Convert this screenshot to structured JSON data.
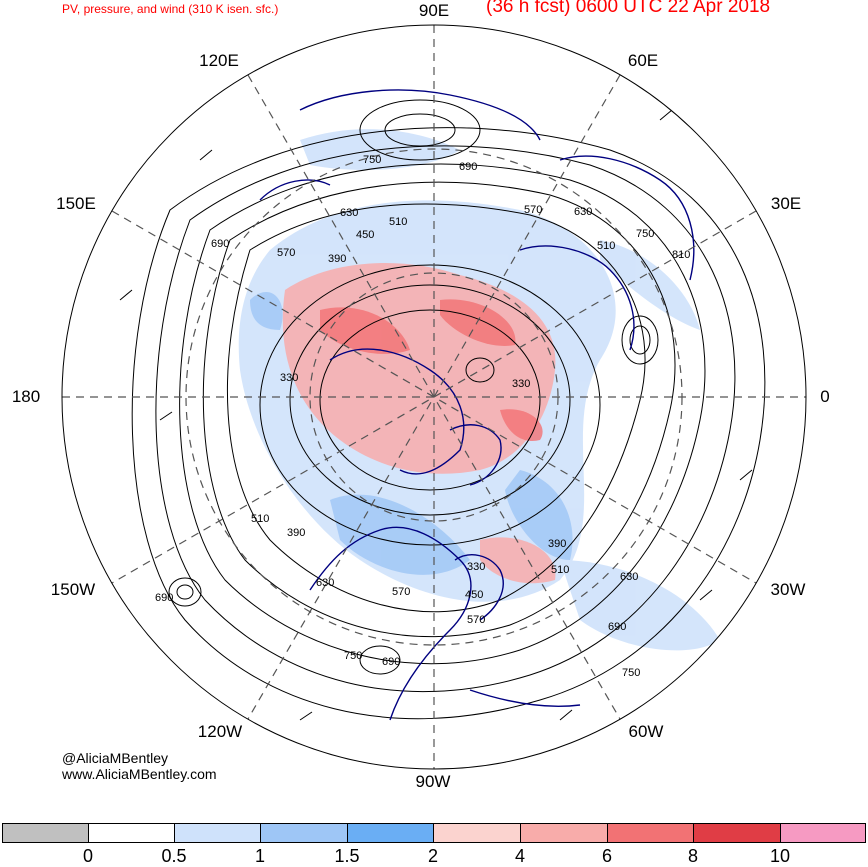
{
  "header": {
    "title": "PV, pressure, and wind (310 K isen. sfc.)",
    "valid": "(36 h fcst) 0600 UTC 22 Apr 2018"
  },
  "credits": {
    "twitter": "@AliciaMBentley",
    "website": "www.AliciaMBentley.com"
  },
  "longitude_labels": [
    "90E",
    "60E",
    "30E",
    "0",
    "30W",
    "60W",
    "90W",
    "120W",
    "150W",
    "180",
    "150E",
    "120E"
  ],
  "contour_labels": [
    "750",
    "690",
    "630",
    "570",
    "510",
    "450",
    "390",
    "330",
    "330",
    "750",
    "630",
    "570",
    "510",
    "690",
    "810",
    "390",
    "330",
    "510",
    "390",
    "630",
    "570",
    "510",
    "450",
    "570",
    "690",
    "750",
    "690",
    "630",
    "690",
    "750"
  ],
  "colors": {
    "land_outline": "#000080",
    "contour": "#000000",
    "title": "#ff0000"
  },
  "colorbar": {
    "ticks": [
      "0",
      "0.5",
      "1",
      "1.5",
      "2",
      "4",
      "6",
      "8",
      "10"
    ],
    "colors": [
      "#c0c0c0",
      "#ffffff",
      "#cfe2fb",
      "#9ec6f6",
      "#6aaef4",
      "#fbd3cf",
      "#f8acaa",
      "#f27274",
      "#e03d45",
      "#f69ac2"
    ]
  }
}
